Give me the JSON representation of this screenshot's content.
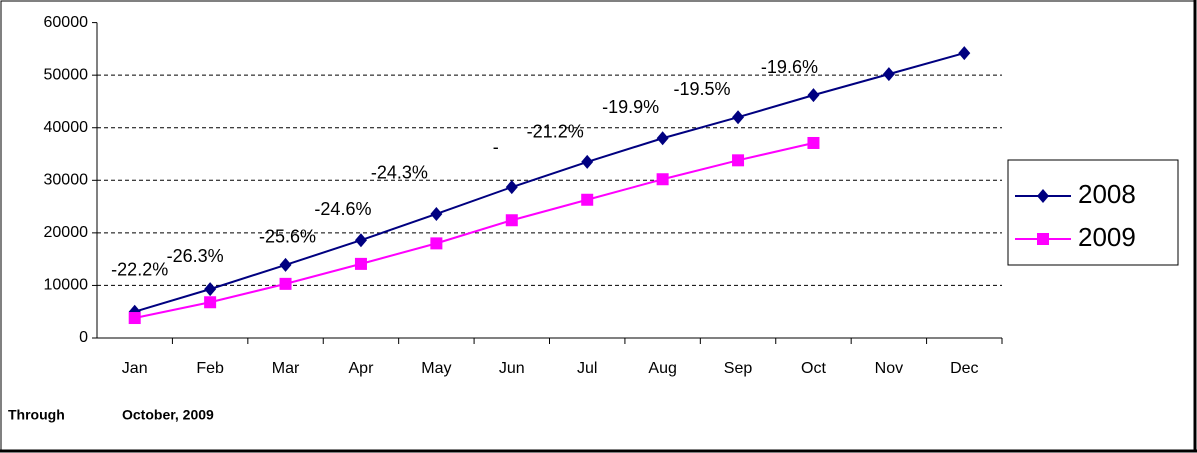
{
  "chart_data": {
    "type": "line",
    "categories": [
      "Jan",
      "Feb",
      "Mar",
      "Apr",
      "May",
      "Jun",
      "Jul",
      "Aug",
      "Sep",
      "Oct",
      "Nov",
      "Dec"
    ],
    "series": [
      {
        "name": "2008",
        "color": "#000080",
        "marker": "diamond",
        "values": [
          5000,
          9300,
          13900,
          18600,
          23600,
          28700,
          33500,
          38000,
          42000,
          46200,
          50200,
          54200
        ]
      },
      {
        "name": "2009",
        "color": "#ff00ff",
        "marker": "square",
        "values": [
          3800,
          6800,
          10300,
          14100,
          18000,
          22400,
          26300,
          30200,
          33800,
          37100,
          null,
          null
        ]
      }
    ],
    "annotations": [
      "-22.2%",
      "-26.3%",
      "-25.6%",
      "-24.6%",
      "-24.3%",
      "-",
      "-21.2%",
      "-19.9%",
      "-19.5%",
      "-19.6%"
    ],
    "ylim": [
      0,
      60000
    ],
    "yticks": [
      0,
      10000,
      20000,
      30000,
      40000,
      50000,
      60000
    ],
    "grid": true,
    "legend": "right",
    "footer": [
      "Through",
      "October, 2009"
    ]
  }
}
